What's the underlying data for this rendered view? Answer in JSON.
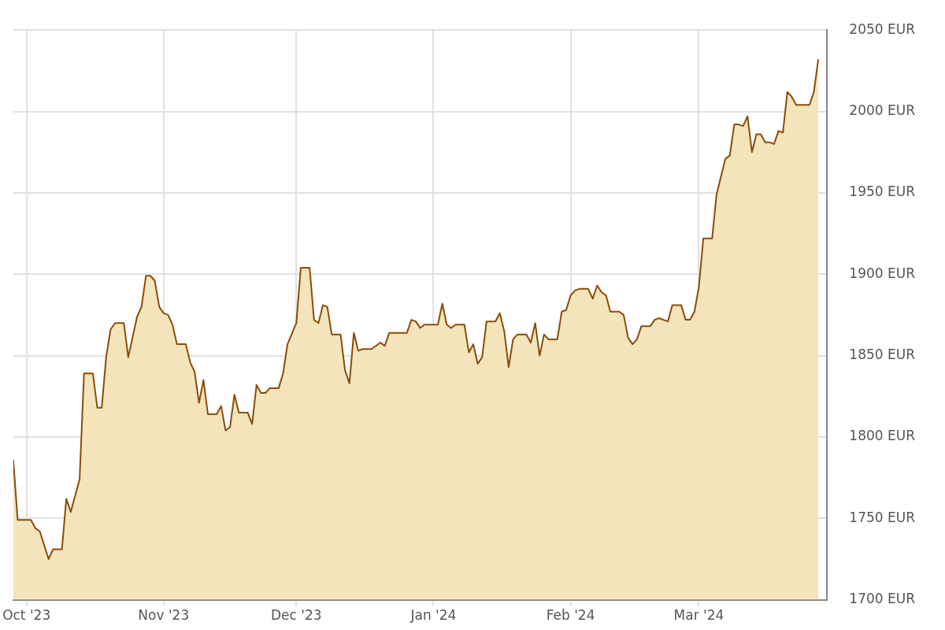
{
  "chart_data": {
    "type": "area",
    "x": [
      "2023-09-28",
      "2023-09-29",
      "2023-10-02",
      "2023-10-03",
      "2023-10-04",
      "2023-10-06",
      "2023-10-07",
      "2023-10-09",
      "2023-10-10",
      "2023-10-11",
      "2023-10-13",
      "2023-10-14",
      "2023-10-16",
      "2023-10-17",
      "2023-10-18",
      "2023-10-19",
      "2023-10-20",
      "2023-10-21",
      "2023-10-23",
      "2023-10-24",
      "2023-10-26",
      "2023-10-27",
      "2023-10-28",
      "2023-10-29",
      "2023-10-30",
      "2023-10-31",
      "2023-11-01",
      "2023-11-02",
      "2023-11-03",
      "2023-11-04",
      "2023-11-06",
      "2023-11-07",
      "2023-11-08",
      "2023-11-09",
      "2023-11-10",
      "2023-11-11",
      "2023-11-13",
      "2023-11-14",
      "2023-11-15",
      "2023-11-16",
      "2023-11-17",
      "2023-11-18",
      "2023-11-20",
      "2023-11-21",
      "2023-11-22",
      "2023-11-23",
      "2023-11-24",
      "2023-11-25",
      "2023-11-27",
      "2023-11-28",
      "2023-11-29",
      "2023-12-01",
      "2023-12-02",
      "2023-12-04",
      "2023-12-05",
      "2023-12-06",
      "2023-12-07",
      "2023-12-08",
      "2023-12-09",
      "2023-12-11",
      "2023-12-12",
      "2023-12-13",
      "2023-12-14",
      "2023-12-15",
      "2023-12-16",
      "2023-12-18",
      "2023-12-20",
      "2023-12-21",
      "2023-12-22",
      "2023-12-23",
      "2023-12-26",
      "2023-12-27",
      "2023-12-28",
      "2023-12-29",
      "2023-12-30",
      "2024-01-02",
      "2024-01-03",
      "2024-01-04",
      "2024-01-05",
      "2024-01-06",
      "2024-01-08",
      "2024-01-09",
      "2024-01-10",
      "2024-01-11",
      "2024-01-12",
      "2024-01-13",
      "2024-01-15",
      "2024-01-16",
      "2024-01-17",
      "2024-01-18",
      "2024-01-19",
      "2024-01-20",
      "2024-01-22",
      "2024-01-23",
      "2024-01-24",
      "2024-01-25",
      "2024-01-26",
      "2024-01-27",
      "2024-01-29",
      "2024-01-30",
      "2024-01-31",
      "2024-02-01",
      "2024-02-02",
      "2024-02-03",
      "2024-02-05",
      "2024-02-06",
      "2024-02-07",
      "2024-02-08",
      "2024-02-09",
      "2024-02-10",
      "2024-02-12",
      "2024-02-13",
      "2024-02-14",
      "2024-02-15",
      "2024-02-16",
      "2024-02-17",
      "2024-02-19",
      "2024-02-20",
      "2024-02-21",
      "2024-02-22",
      "2024-02-23",
      "2024-02-24",
      "2024-02-26",
      "2024-02-27",
      "2024-02-28",
      "2024-02-29",
      "2024-03-01",
      "2024-03-02",
      "2024-03-04",
      "2024-03-05",
      "2024-03-06",
      "2024-03-07",
      "2024-03-08",
      "2024-03-09",
      "2024-03-10",
      "2024-03-11",
      "2024-03-12",
      "2024-03-13",
      "2024-03-14",
      "2024-03-15",
      "2024-03-16",
      "2024-03-17",
      "2024-03-18",
      "2024-03-19",
      "2024-03-20",
      "2024-03-21",
      "2024-03-22",
      "2024-03-23",
      "2024-03-24",
      "2024-03-25",
      "2024-03-26",
      "2024-03-27",
      "2024-03-28"
    ],
    "series": [
      {
        "color": "#8b4c06",
        "values": [
          1786,
          1749,
          1749,
          1744,
          1742,
          1725,
          1731,
          1731,
          1762,
          1754,
          1774,
          1839,
          1839,
          1818,
          1818,
          1849,
          1866,
          1870,
          1870,
          1849,
          1874,
          1880,
          1899,
          1899,
          1896,
          1880,
          1876,
          1875,
          1869,
          1857,
          1857,
          1846,
          1840,
          1821,
          1835,
          1814,
          1814,
          1819,
          1804,
          1806,
          1826,
          1815,
          1815,
          1808,
          1832,
          1827,
          1827,
          1830,
          1830,
          1839,
          1857,
          1870,
          1904,
          1904,
          1872,
          1870,
          1881,
          1880,
          1863,
          1863,
          1841,
          1833,
          1864,
          1853,
          1854,
          1854,
          1858,
          1856,
          1864,
          1864,
          1864,
          1872,
          1871,
          1867,
          1869,
          1869,
          1882,
          1869,
          1867,
          1869,
          1869,
          1852,
          1857,
          1845,
          1849,
          1871,
          1871,
          1876,
          1865,
          1843,
          1860,
          1863,
          1863,
          1858,
          1870,
          1850,
          1863,
          1860,
          1860,
          1877,
          1878,
          1887,
          1890,
          1891,
          1891,
          1885,
          1893,
          1889,
          1887,
          1877,
          1877,
          1875,
          1861,
          1857,
          1860,
          1868,
          1868,
          1872,
          1873,
          1872,
          1871,
          1881,
          1881,
          1872,
          1872,
          1877,
          1892,
          1922,
          1922,
          1949,
          1960,
          1971,
          1973,
          1992,
          1992,
          1991,
          1997,
          1975,
          1986,
          1986,
          1981,
          1981,
          1980,
          1988,
          1987,
          2012,
          2009,
          2004,
          2004,
          2004,
          2004,
          2012,
          2032
        ]
      }
    ],
    "xlim": [
      "2023-09-28",
      "2024-03-30"
    ],
    "xticks": [
      {
        "value": "2023-10-01",
        "label": "Oct '23"
      },
      {
        "value": "2023-11-01",
        "label": "Nov '23"
      },
      {
        "value": "2023-12-01",
        "label": "Dec '23"
      },
      {
        "value": "2024-01-01",
        "label": "Jan '24"
      },
      {
        "value": "2024-02-01",
        "label": "Feb '24"
      },
      {
        "value": "2024-03-01",
        "label": "Mar '24"
      }
    ],
    "ylim": [
      1700,
      2050
    ],
    "yticks": [
      {
        "value": 1700,
        "label": "1700 EUR"
      },
      {
        "value": 1750,
        "label": "1750 EUR"
      },
      {
        "value": 1800,
        "label": "1800 EUR"
      },
      {
        "value": 1850,
        "label": "1850 EUR"
      },
      {
        "value": 1900,
        "label": "1900 EUR"
      },
      {
        "value": 1950,
        "label": "1950 EUR"
      },
      {
        "value": 2000,
        "label": "2000 EUR"
      },
      {
        "value": 2050,
        "label": "2050 EUR"
      }
    ],
    "grid": true
  }
}
